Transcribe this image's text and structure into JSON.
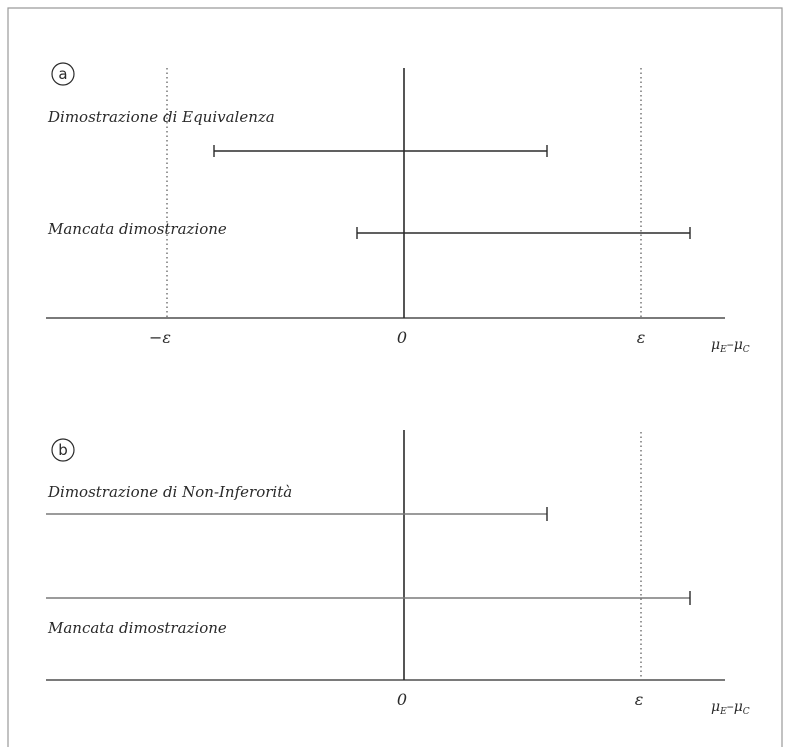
{
  "panel_a": {
    "letter": "a",
    "row1_label": "Dimostrazione di Equivalenza",
    "row2_label": "Mancata dimostrazione",
    "tick_neg_eps": "−ε",
    "tick_zero": "0",
    "tick_eps": "ε",
    "axis_label_mu": "μ",
    "axis_label_sub_e": "E",
    "axis_label_dash": "–",
    "axis_label_sub_c": "C"
  },
  "panel_b": {
    "letter": "b",
    "row1_label": "Dimostrazione di Non-Inferorità",
    "row2_label": "Mancata dimostrazione",
    "tick_zero": "0",
    "tick_eps": "ε",
    "axis_label_mu": "μ",
    "axis_label_sub_e": "E",
    "axis_label_dash": "–",
    "axis_label_sub_c": "C"
  },
  "colors": {
    "line": "#2b2b2b",
    "gray_line": "#7a7a7a",
    "frame": "#9a9a9a"
  }
}
